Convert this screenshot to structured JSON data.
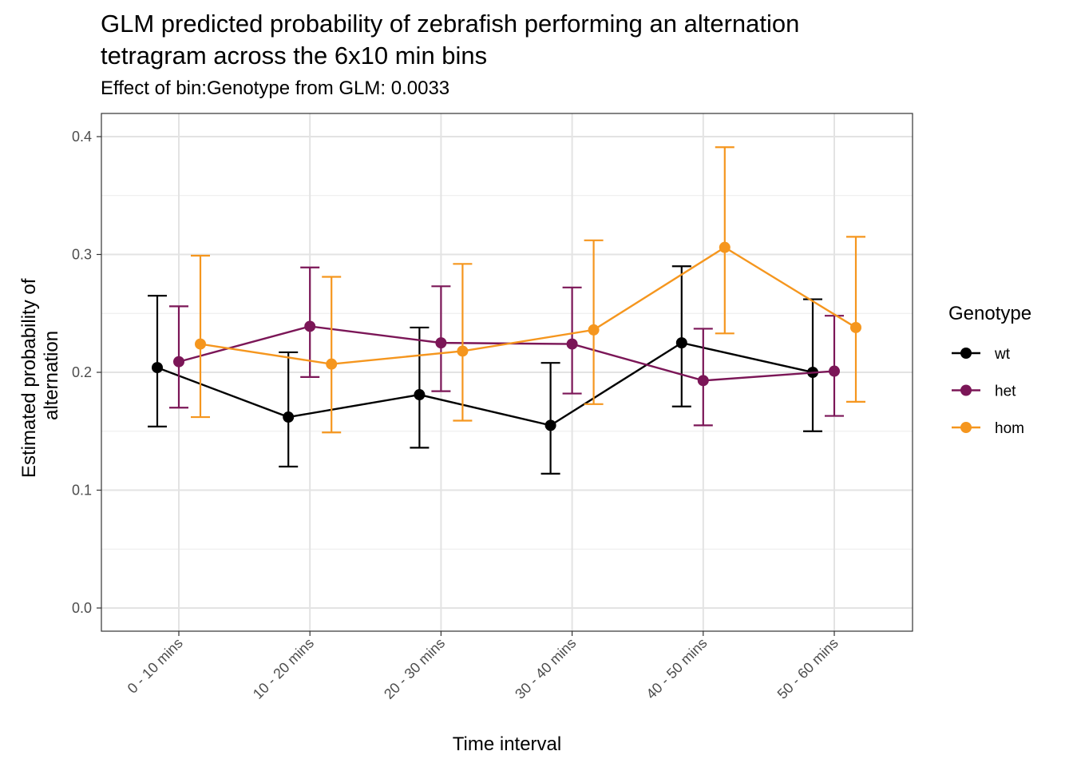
{
  "chart_data": {
    "type": "line",
    "title": "GLM predicted probability of zebrafish performing an alternation tetragram across the 6x10 min bins",
    "title_lines": [
      "GLM predicted probability of zebrafish performing an alternation",
      "tetragram across the 6x10 min bins"
    ],
    "subtitle": "Effect of bin:Genotype from GLM: 0.0033",
    "xlabel": "Time interval",
    "ylabel": "Estimated probability of alternation",
    "ylabel_lines": [
      "Estimated probability of",
      "alternation"
    ],
    "categories": [
      "0 - 10 mins",
      "10 - 20 mins",
      "20 - 30 mins",
      "30 - 40 mins",
      "40 - 50 mins",
      "50 - 60 mins"
    ],
    "ylim": [
      -0.02,
      0.42
    ],
    "yticks": [
      0.0,
      0.1,
      0.2,
      0.3,
      0.4
    ],
    "ytick_labels": [
      "0.0",
      "0.1",
      "0.2",
      "0.3",
      "0.4"
    ],
    "grid": true,
    "legend": {
      "title": "Genotype",
      "position": "right"
    },
    "series": [
      {
        "name": "wt",
        "color": "#000000",
        "values": [
          0.204,
          0.162,
          0.181,
          0.155,
          0.225,
          0.2
        ],
        "lower": [
          0.154,
          0.12,
          0.136,
          0.114,
          0.171,
          0.15
        ],
        "upper": [
          0.265,
          0.217,
          0.238,
          0.208,
          0.29,
          0.262
        ]
      },
      {
        "name": "het",
        "color": "#7b1657",
        "values": [
          0.209,
          0.239,
          0.225,
          0.224,
          0.193,
          0.201
        ],
        "lower": [
          0.17,
          0.196,
          0.184,
          0.182,
          0.155,
          0.163
        ],
        "upper": [
          0.256,
          0.289,
          0.273,
          0.272,
          0.237,
          0.248
        ]
      },
      {
        "name": "hom",
        "color": "#f5961e",
        "values": [
          0.224,
          0.207,
          0.218,
          0.236,
          0.306,
          0.238
        ],
        "lower": [
          0.162,
          0.149,
          0.159,
          0.173,
          0.233,
          0.175
        ],
        "upper": [
          0.299,
          0.281,
          0.292,
          0.312,
          0.391,
          0.315
        ]
      }
    ]
  }
}
